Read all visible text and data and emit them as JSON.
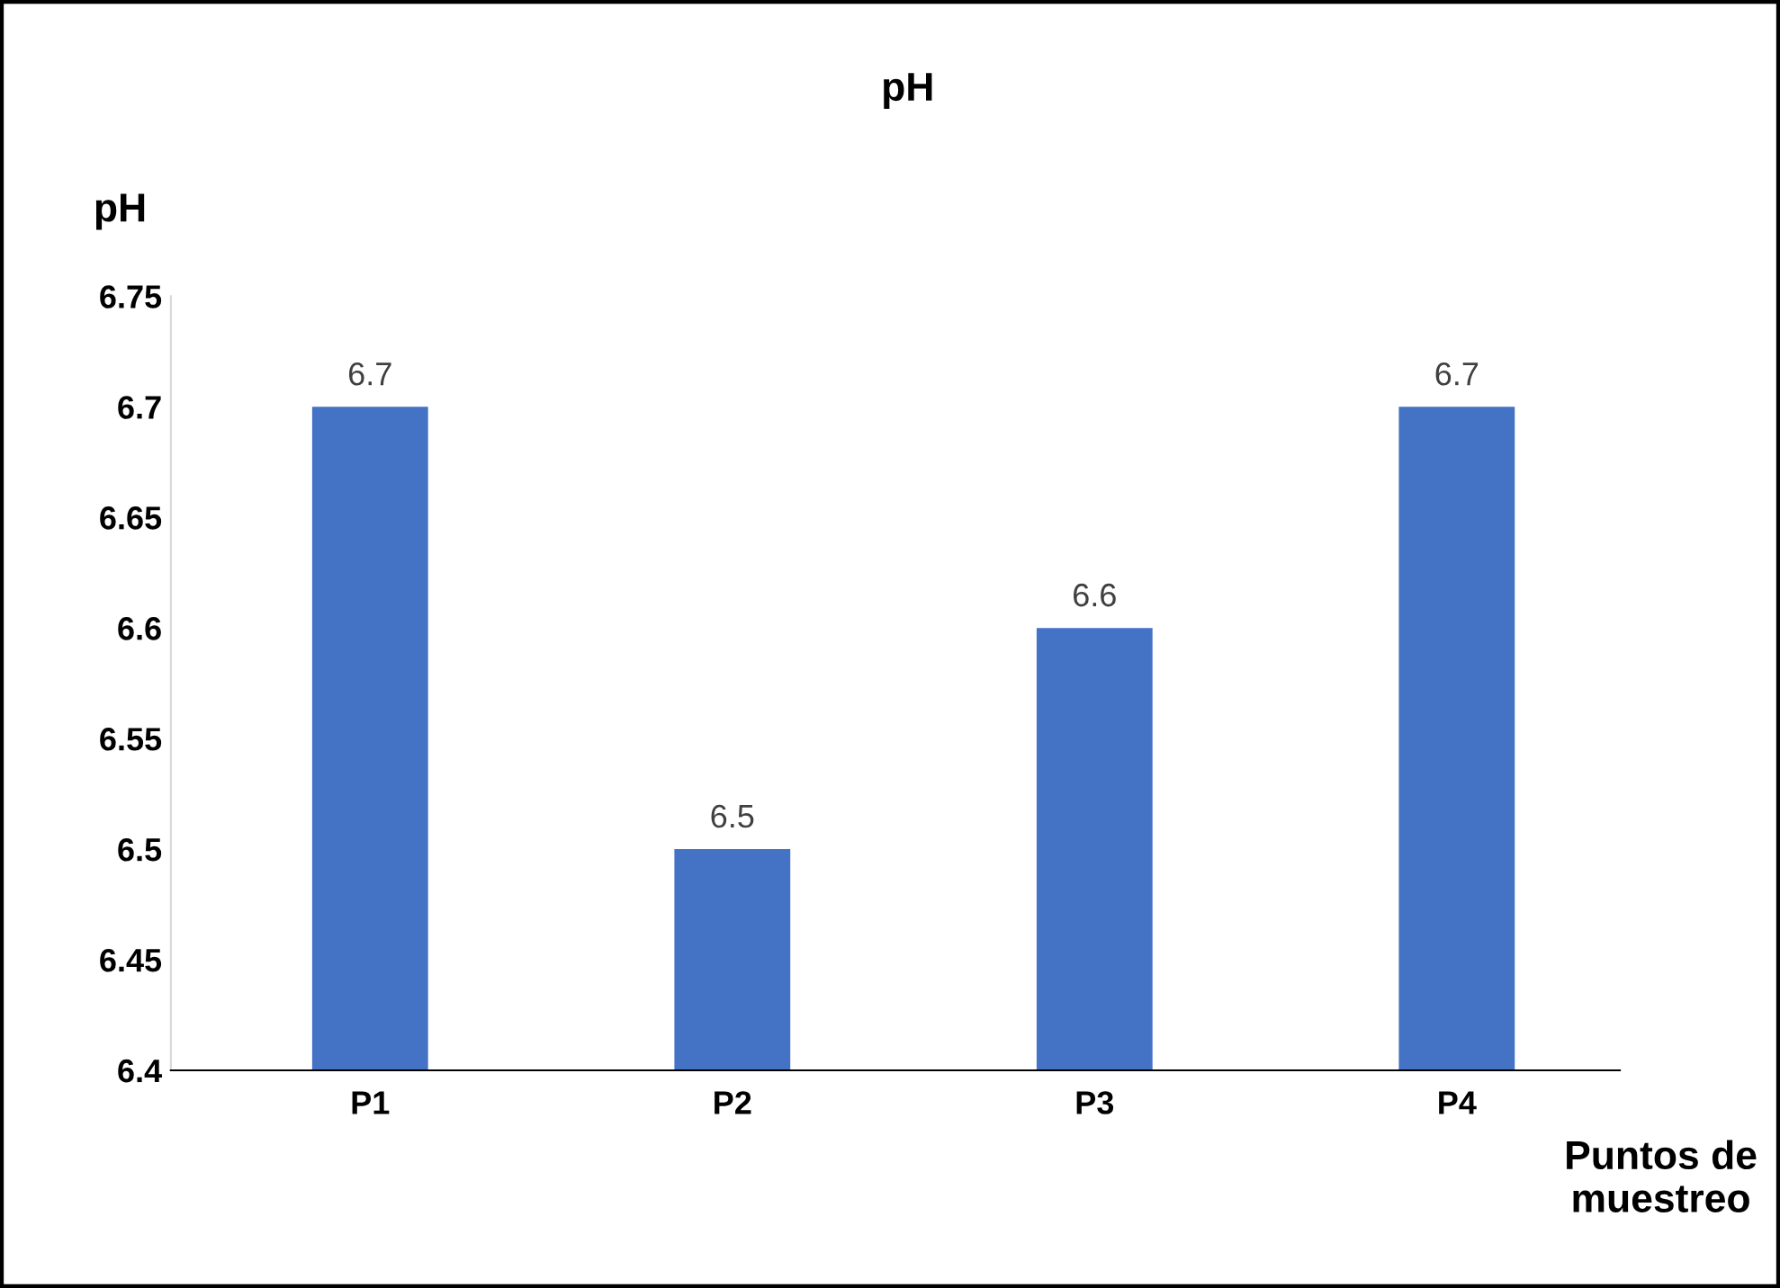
{
  "chart_data": {
    "type": "bar",
    "title": "pH",
    "ylabel": "pH",
    "xlabel": "Puntos de\nmuestreo",
    "categories": [
      "P1",
      "P2",
      "P3",
      "P4"
    ],
    "values": [
      6.7,
      6.5,
      6.6,
      6.7
    ],
    "color": "#4472c4",
    "ylim": [
      6.4,
      6.75
    ],
    "yticks": [
      6.4,
      6.45,
      6.5,
      6.55,
      6.6,
      6.65,
      6.7,
      6.75
    ],
    "data_labels": true,
    "grid": false,
    "legend": false
  }
}
